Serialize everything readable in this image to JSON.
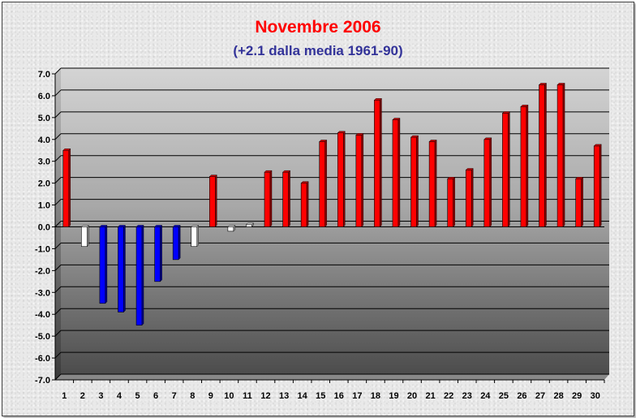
{
  "chart_data": {
    "type": "bar",
    "title": "Novembre 2006",
    "subtitle": "(+2.1 dalla media 1961-90)",
    "categories": [
      "1",
      "2",
      "3",
      "4",
      "5",
      "6",
      "7",
      "8",
      "9",
      "10",
      "11",
      "12",
      "13",
      "14",
      "15",
      "16",
      "17",
      "18",
      "19",
      "20",
      "21",
      "22",
      "23",
      "24",
      "25",
      "26",
      "27",
      "28",
      "29",
      "30"
    ],
    "values": [
      3.5,
      -0.9,
      -3.5,
      -3.9,
      -4.5,
      -2.5,
      -1.5,
      -0.9,
      2.3,
      -0.2,
      0.1,
      2.5,
      2.5,
      2.0,
      3.9,
      4.3,
      4.2,
      5.8,
      4.9,
      4.1,
      3.9,
      2.2,
      2.6,
      4.0,
      5.2,
      5.5,
      6.5,
      6.5,
      2.2,
      3.7
    ],
    "bar_colors": [
      "#ff0000",
      "#ffffff",
      "#0000ff",
      "#0000ff",
      "#0000ff",
      "#0000ff",
      "#0000ff",
      "#ffffff",
      "#ff0000",
      "#ffffff",
      "#ffffff",
      "#ff0000",
      "#ff0000",
      "#ff0000",
      "#ff0000",
      "#ff0000",
      "#ff0000",
      "#ff0000",
      "#ff0000",
      "#ff0000",
      "#ff0000",
      "#ff0000",
      "#ff0000",
      "#ff0000",
      "#ff0000",
      "#ff0000",
      "#ff0000",
      "#ff0000",
      "#ff0000",
      "#ff0000"
    ],
    "y_ticks": [
      "7.0",
      "6.0",
      "5.0",
      "4.0",
      "3.0",
      "2.0",
      "1.0",
      "0.0",
      "-1.0",
      "-2.0",
      "-3.0",
      "-4.0",
      "-5.0",
      "-6.0",
      "-7.0"
    ],
    "ylim": [
      -7,
      7
    ],
    "ystep": 1,
    "xlabel": "",
    "ylabel": "",
    "grid": true,
    "legend": "none",
    "title_color": "#ff0000",
    "subtitle_color": "#333399"
  }
}
